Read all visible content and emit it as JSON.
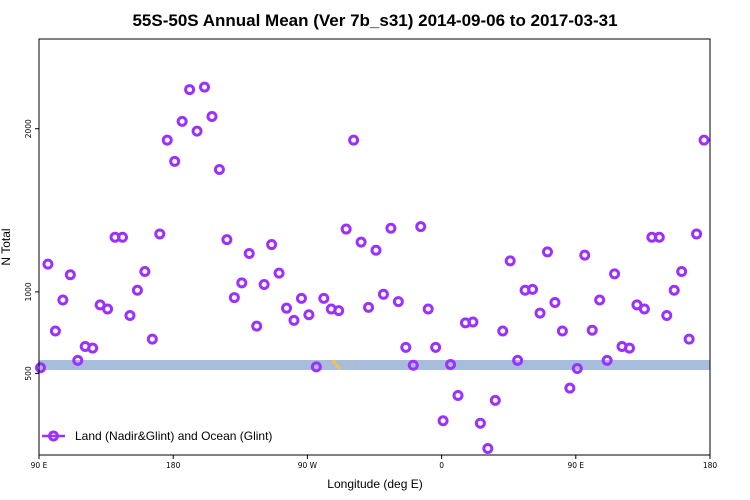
{
  "chart_data": {
    "type": "scatter",
    "title": "55S-50S Annual Mean (Ver 7b_s31)   2014-09-06 to 2017-03-31",
    "xlabel": "Longitude (deg E)",
    "ylabel": "N Total",
    "x_ticks": [
      {
        "value": -90,
        "label": "90 E"
      },
      {
        "value": -45,
        "label": "180"
      },
      {
        "value": 0,
        "label": "90 W"
      },
      {
        "value": 45,
        "label": "0"
      },
      {
        "value": 90,
        "label": "90 E"
      },
      {
        "value": 135,
        "label": "180"
      }
    ],
    "y_ticks": [
      500,
      1000,
      2000
    ],
    "xlim": [
      -90,
      135
    ],
    "ylim": [
      0,
      2550
    ],
    "grid": false,
    "legend": {
      "position": "bottom-left",
      "entries": [
        "Land (Nadir&Glint) and Ocean (Glint)"
      ]
    },
    "colors": {
      "series": "#9b30ff",
      "land_band": "#a8bcdc",
      "land_fill": "#f2c14e",
      "axis": "#000000"
    },
    "series": [
      {
        "name": "Land (Nadir&Glint) and Ocean (Glint)",
        "x": [
          -89.5,
          -87.0,
          -84.5,
          -82.0,
          -79.5,
          -77.0,
          -74.5,
          -72.0,
          -69.5,
          -67.0,
          -64.5,
          -62.0,
          -59.5,
          -57.0,
          -54.5,
          -52.0,
          -49.5,
          -47.0,
          -44.5,
          -42.0,
          -39.5,
          -37.0,
          -34.5,
          -32.0,
          -29.5,
          -27.0,
          -24.5,
          -22.0,
          -19.5,
          -17.0,
          -14.5,
          -12.0,
          -9.5,
          -7.0,
          -4.5,
          -2.0,
          0.5,
          3.0,
          5.5,
          8.0,
          10.5,
          13.0,
          15.5,
          18.0,
          20.5,
          23.0,
          25.5,
          28.0,
          30.5,
          33.0,
          35.5,
          38.0,
          40.5,
          43.0,
          45.5,
          48.0,
          50.5,
          53.0,
          55.5,
          58.0,
          60.5,
          63.0,
          65.5,
          68.0,
          70.5,
          73.0,
          75.5,
          78.0,
          80.5,
          83.0,
          85.5,
          88.0,
          90.5,
          93.0,
          95.5,
          98.0,
          100.5,
          103.0,
          105.5,
          108.0,
          110.5,
          113.0,
          115.5,
          118.0,
          120.5,
          123.0,
          125.5,
          128.0,
          130.5,
          133.0
        ],
        "y": [
          535,
          1170,
          760,
          950,
          1105,
          580,
          665,
          655,
          920,
          895,
          1335,
          1335,
          855,
          1010,
          1125,
          710,
          1355,
          1930,
          1800,
          2045,
          2240,
          1985,
          2255,
          2075,
          1750,
          1320,
          965,
          1055,
          1235,
          790,
          1045,
          1290,
          1115,
          900,
          825,
          960,
          860,
          540,
          960,
          895,
          885,
          1385,
          1930,
          1305,
          905,
          1255,
          985,
          1390,
          940,
          660,
          550,
          1400,
          895,
          660,
          210,
          555,
          365,
          810,
          815,
          195,
          40,
          335,
          760,
          1190,
          580,
          1010,
          1015,
          870,
          1245,
          935,
          760,
          410,
          530,
          1225,
          765,
          950,
          580,
          1110,
          665,
          655,
          920,
          895,
          1335,
          1335,
          855,
          1010,
          1125,
          710,
          1355,
          1930
        ]
      }
    ]
  }
}
